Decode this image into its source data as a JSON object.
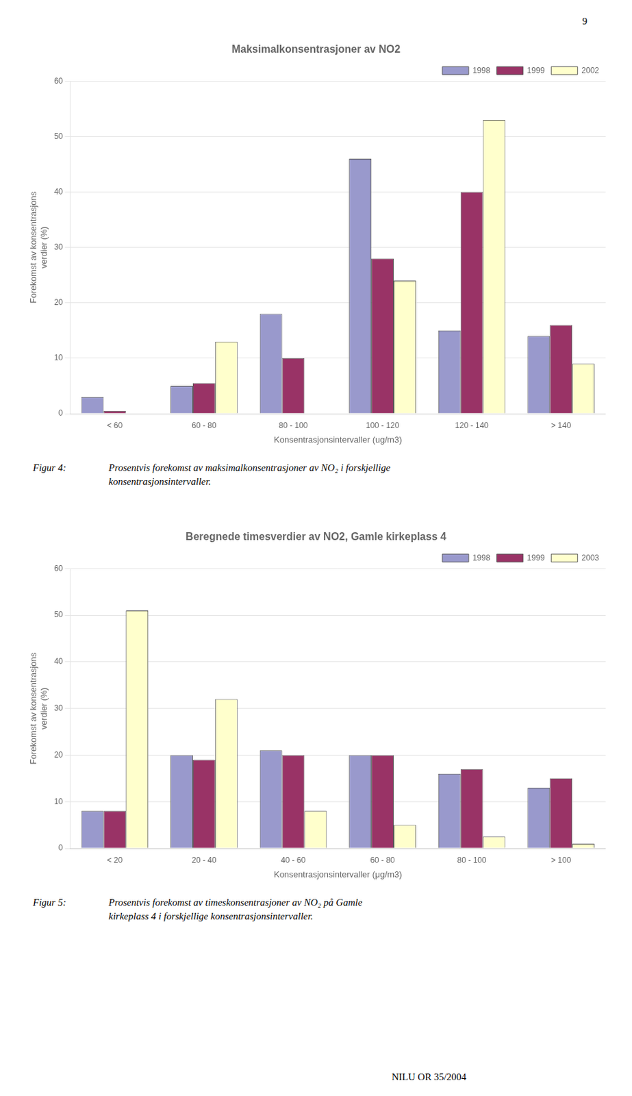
{
  "page_number": "9",
  "footer": "NILU OR  35/2004",
  "chart_data": [
    {
      "type": "bar",
      "title": "Maksimalkonsentrasjoner av NO2",
      "xlabel": "Konsentrasjonsintervaller (ug/m3)",
      "ylabel": "Forekomst av konsentrasjons\nverdier (%)",
      "categories": [
        "< 60",
        "60 - 80",
        "80 - 100",
        "100 - 120",
        "120 - 140",
        "> 140"
      ],
      "series": [
        {
          "name": "1998",
          "color": "#9999cc",
          "values": [
            3,
            5,
            18,
            46,
            15,
            14
          ]
        },
        {
          "name": "1999",
          "color": "#993366",
          "values": [
            0.5,
            5.5,
            10,
            28,
            40,
            16
          ]
        },
        {
          "name": "2002",
          "color": "#ffffcc",
          "values": [
            0,
            13,
            0,
            24,
            53,
            9
          ]
        }
      ],
      "ylim": [
        0,
        60
      ],
      "yticks": [
        0,
        10,
        20,
        30,
        40,
        50,
        60
      ],
      "grid": true,
      "legend": "upper right",
      "annotations": [
        "Figur 4:",
        "Prosentvis forekomst av maksimalkonsentrasjoner av NO₂ i forskjellige",
        "konsentrasjonsintervaller."
      ]
    },
    {
      "type": "bar",
      "title": "Beregnede timesverdier av NO2, Gamle kirkeplass 4",
      "xlabel": "Konsentrasjonsintervaller (μg/m3)",
      "ylabel": "Forekomst av konsentrasjons\nverdier (%)",
      "categories": [
        "< 20",
        "20 - 40",
        "40 - 60",
        "60 - 80",
        "80 - 100",
        "> 100"
      ],
      "series": [
        {
          "name": "1998",
          "color": "#9999cc",
          "values": [
            8,
            20,
            21,
            20,
            16,
            13
          ]
        },
        {
          "name": "1999",
          "color": "#993366",
          "values": [
            8,
            19,
            20,
            20,
            17,
            15
          ]
        },
        {
          "name": "2003",
          "color": "#ffffcc",
          "values": [
            51,
            32,
            8,
            5,
            2.5,
            1
          ]
        }
      ],
      "ylim": [
        0,
        60
      ],
      "yticks": [
        0,
        10,
        20,
        30,
        40,
        50,
        60
      ],
      "grid": true,
      "legend": "upper right",
      "annotations": [
        "Figur 5:",
        "Prosentvis forekomst av timeskonsentrasjoner av NO₂ på Gamle",
        "kirkeplass 4 i forskjellige konsentrasjonsintervaller."
      ]
    }
  ]
}
